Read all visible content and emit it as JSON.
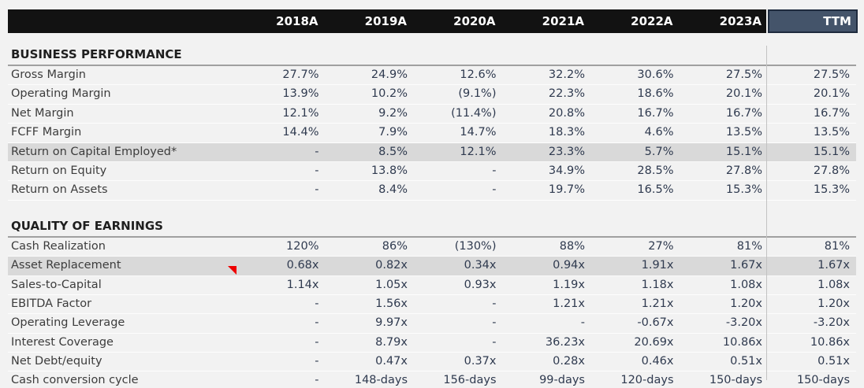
{
  "header": {
    "columns": [
      "2018A",
      "2019A",
      "2020A",
      "2021A",
      "2022A",
      "2023A"
    ],
    "ttm_label": "TTM"
  },
  "sections": [
    {
      "title": "BUSINESS PERFORMANCE",
      "rows": [
        {
          "label": "Gross Margin",
          "highlight": false,
          "values": [
            "27.7%",
            "24.9%",
            "12.6%",
            "32.2%",
            "30.6%",
            "27.5%",
            "27.5%"
          ]
        },
        {
          "label": "Operating Margin",
          "highlight": false,
          "values": [
            "13.9%",
            "10.2%",
            "(9.1%)",
            "22.3%",
            "18.6%",
            "20.1%",
            "20.1%"
          ]
        },
        {
          "label": "Net Margin",
          "highlight": false,
          "values": [
            "12.1%",
            "9.2%",
            "(11.4%)",
            "20.8%",
            "16.7%",
            "16.7%",
            "16.7%"
          ]
        },
        {
          "label": "FCFF Margin",
          "highlight": false,
          "values": [
            "14.4%",
            "7.9%",
            "14.7%",
            "18.3%",
            "4.6%",
            "13.5%",
            "13.5%"
          ]
        },
        {
          "label": "Return on Capital Employed*",
          "highlight": true,
          "values": [
            "-",
            "8.5%",
            "12.1%",
            "23.3%",
            "5.7%",
            "15.1%",
            "15.1%"
          ]
        },
        {
          "label": "Return on Equity",
          "highlight": false,
          "values": [
            "-",
            "13.8%",
            "-",
            "34.9%",
            "28.5%",
            "27.8%",
            "27.8%"
          ]
        },
        {
          "label": "Return on Assets",
          "highlight": false,
          "values": [
            "-",
            "8.4%",
            "-",
            "19.7%",
            "16.5%",
            "15.3%",
            "15.3%"
          ]
        }
      ]
    },
    {
      "title": "QUALITY OF EARNINGS",
      "rows": [
        {
          "label": "Cash Realization",
          "highlight": false,
          "values": [
            "120%",
            "86%",
            "(130%)",
            "88%",
            "27%",
            "81%",
            "81%"
          ]
        },
        {
          "label": "Asset Replacement",
          "highlight": true,
          "values": [
            "0.68x",
            "0.82x",
            "0.34x",
            "0.94x",
            "1.91x",
            "1.67x",
            "1.67x"
          ]
        },
        {
          "label": "Sales-to-Capital",
          "highlight": false,
          "comment_marker": true,
          "values": [
            "1.14x",
            "1.05x",
            "0.93x",
            "1.19x",
            "1.18x",
            "1.08x",
            "1.08x"
          ]
        },
        {
          "label": "EBITDA Factor",
          "highlight": false,
          "values": [
            "-",
            "1.56x",
            "-",
            "1.21x",
            "1.21x",
            "1.20x",
            "1.20x"
          ]
        },
        {
          "label": "Operating Leverage",
          "highlight": false,
          "values": [
            "-",
            "9.97x",
            "-",
            "-",
            "-0.67x",
            "-3.20x",
            "-3.20x"
          ]
        },
        {
          "label": "Interest Coverage",
          "highlight": false,
          "values": [
            "-",
            "8.79x",
            "-",
            "36.23x",
            "20.69x",
            "10.86x",
            "10.86x"
          ]
        },
        {
          "label": "Net Debt/equity",
          "highlight": false,
          "values": [
            "-",
            "0.47x",
            "0.37x",
            "0.28x",
            "0.46x",
            "0.51x",
            "0.51x"
          ]
        },
        {
          "label": "Cash conversion cycle",
          "highlight": false,
          "values": [
            "-",
            "148-days",
            "156-days",
            "99-days",
            "120-days",
            "150-days",
            "150-days"
          ]
        }
      ]
    }
  ],
  "annotations": {
    "comment_marker_row": "Sales-to-Capital"
  },
  "colors": {
    "page_bg": "#F2F2F2",
    "header_bar_bg": "#121212",
    "ttm_header_bg": "#44546A",
    "highlight_row_bg": "#D9D9D9",
    "value_text": "#2F3A4F",
    "label_text": "#3C3C3C",
    "comment_marker": "#EE0000",
    "separator_line": "#C2C2C2"
  }
}
